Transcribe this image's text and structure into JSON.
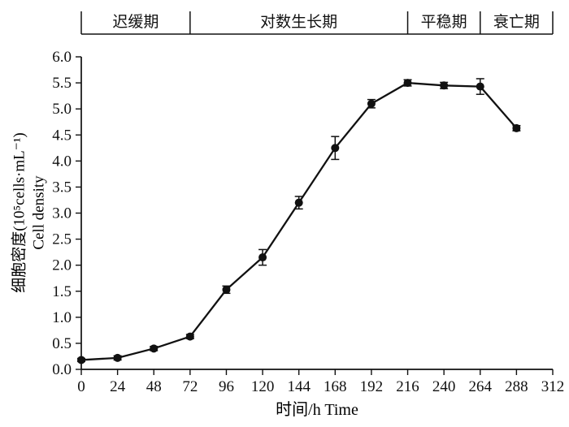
{
  "figure": {
    "xlabel": "时间/h Time",
    "ylabel_line1": "细胞密度(10⁵cells·mL⁻¹)",
    "ylabel_line2": "Cell density"
  },
  "chart_data": {
    "type": "line",
    "title": "",
    "xlabel": "时间/h Time",
    "ylabel": "细胞密度(10⁵cells·mL⁻¹) Cell density",
    "x": [
      0,
      24,
      48,
      72,
      96,
      120,
      144,
      168,
      192,
      216,
      240,
      264,
      288
    ],
    "y": [
      0.18,
      0.22,
      0.4,
      0.63,
      1.53,
      2.15,
      3.2,
      4.25,
      5.1,
      5.5,
      5.45,
      5.43,
      4.63
    ],
    "yerr": [
      0.03,
      0.04,
      0.04,
      0.04,
      0.07,
      0.15,
      0.12,
      0.22,
      0.08,
      0.06,
      0.06,
      0.15,
      0.05
    ],
    "xlim": [
      0,
      312
    ],
    "ylim": [
      0,
      6.0
    ],
    "xticks": [
      0,
      24,
      48,
      72,
      96,
      120,
      144,
      168,
      192,
      216,
      240,
      264,
      288,
      312
    ],
    "yticks": [
      0,
      0.5,
      1,
      1.5,
      2,
      2.5,
      3,
      3.5,
      4,
      4.5,
      5,
      5.5,
      6
    ],
    "phases": [
      {
        "label": "迟缓期",
        "start": 0,
        "end": 72
      },
      {
        "label": "对数生长期",
        "start": 72,
        "end": 216
      },
      {
        "label": "平稳期",
        "start": 216,
        "end": 264
      },
      {
        "label": "衰亡期",
        "start": 264,
        "end": 312
      }
    ],
    "line_color": "#111111",
    "marker": "circle",
    "grid": false,
    "legend": null
  }
}
